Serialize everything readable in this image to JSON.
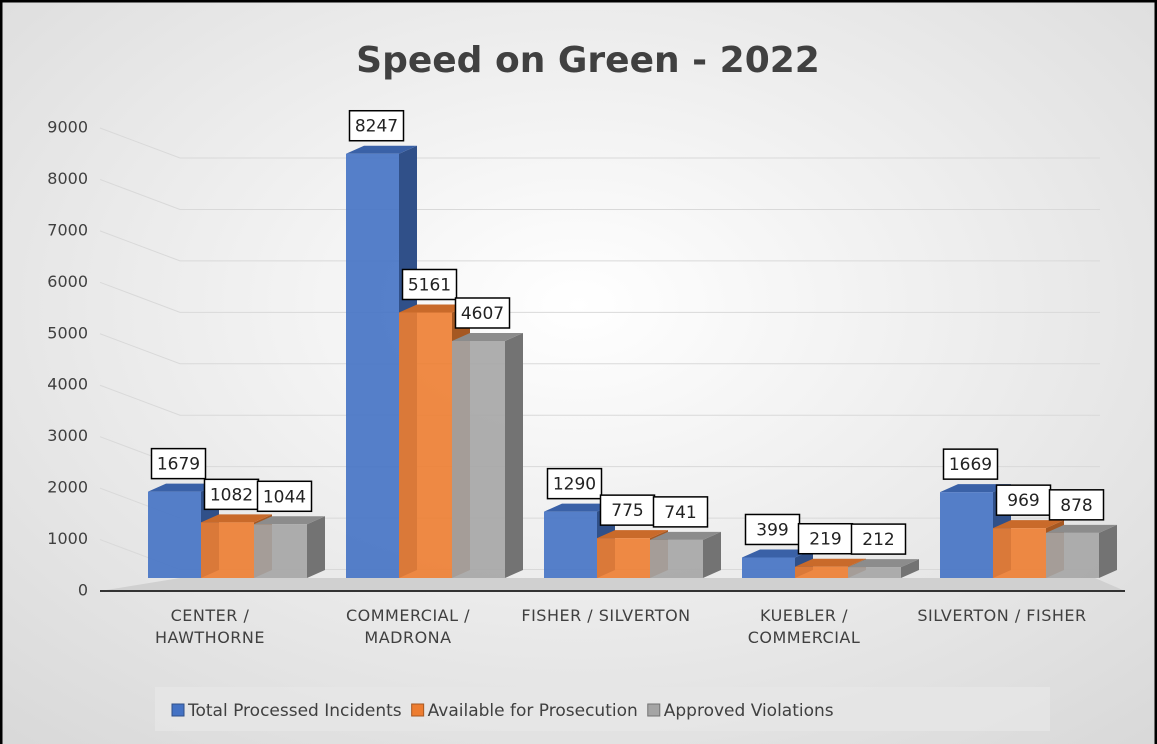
{
  "chart_data": {
    "type": "bar3d",
    "title": "Speed on Green - 2022",
    "categories": [
      "CENTER / HAWTHORNE",
      "COMMERCIAL / MADRONA",
      "FISHER / SILVERTON",
      "KUEBLER / COMMERCIAL",
      "SILVERTON / FISHER"
    ],
    "series": [
      {
        "name": "Total Processed Incidents",
        "color": "#4472c4",
        "values": [
          1679,
          8247,
          1290,
          399,
          1669
        ]
      },
      {
        "name": "Available for Prosecution",
        "color": "#ed7d31",
        "values": [
          1082,
          5161,
          775,
          219,
          969
        ]
      },
      {
        "name": "Approved Violations",
        "color": "#a5a5a5",
        "values": [
          1044,
          4607,
          741,
          212,
          878
        ]
      }
    ],
    "ylim": [
      0,
      9000
    ],
    "yticks": [
      0,
      1000,
      2000,
      3000,
      4000,
      5000,
      6000,
      7000,
      8000,
      9000
    ],
    "grid": true,
    "legend": "bottom"
  }
}
